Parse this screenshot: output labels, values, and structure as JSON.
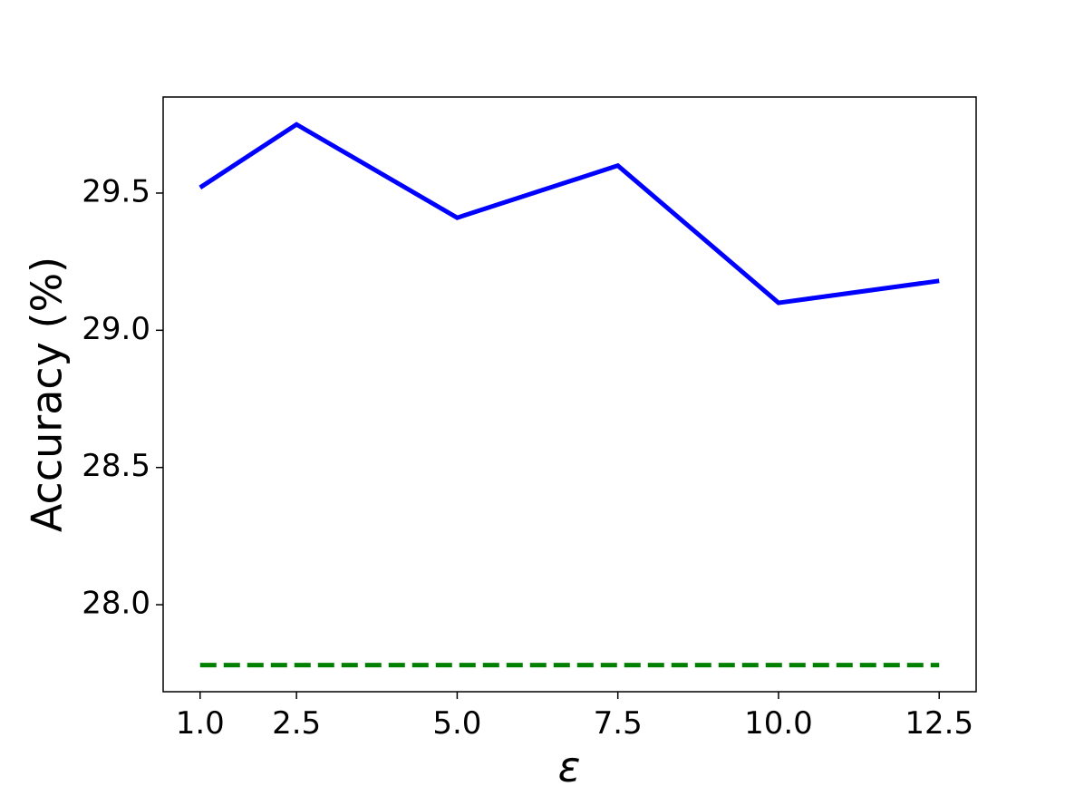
{
  "chart_data": {
    "type": "line",
    "x_label": "ε",
    "y_label": "Accuracy (%)",
    "x": [
      1.0,
      2.5,
      5.0,
      7.5,
      10.0,
      12.5
    ],
    "series": [
      {
        "color": "#0000ff",
        "linestyle": "solid",
        "values": [
          29.52,
          29.75,
          29.41,
          29.6,
          29.1,
          29.18
        ]
      },
      {
        "color": "#008000",
        "linestyle": "dashed",
        "values": [
          27.78,
          27.78,
          27.78,
          27.78,
          27.78,
          27.78
        ]
      }
    ],
    "xlim": [
      0.425,
      13.075
    ],
    "xticks": [
      {
        "value": 1,
        "label": "1.0"
      },
      2.5,
      {
        "value": 5,
        "label": "5.0"
      },
      7.5,
      {
        "value": 10,
        "label": "10.0"
      },
      12.5
    ],
    "ylim": [
      27.683,
      29.85
    ],
    "yticks": [
      {
        "value": 28,
        "label": "28.0"
      },
      28.5,
      {
        "value": 29,
        "label": "29.0"
      },
      29.5
    ],
    "grid": false
  }
}
